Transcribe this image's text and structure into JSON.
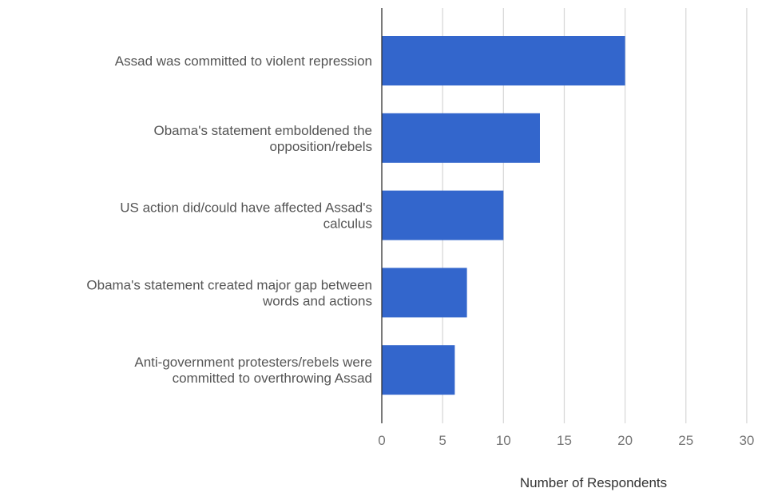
{
  "chart_data": {
    "type": "bar",
    "orientation": "horizontal",
    "categories": [
      [
        "Assad was committed to violent repression"
      ],
      [
        "Obama's statement emboldened the",
        "opposition/rebels"
      ],
      [
        "US action did/could have affected Assad's",
        "calculus"
      ],
      [
        "Obama's statement created major gap between",
        "words and actions"
      ],
      [
        "Anti-government protesters/rebels were",
        "committed to overthrowing Assad"
      ]
    ],
    "values": [
      20,
      13,
      10,
      7,
      6
    ],
    "xlabel": "Number of Respondents",
    "ylabel": "",
    "xlim": [
      0,
      30
    ],
    "xticks": [
      0,
      5,
      10,
      15,
      20,
      25,
      30
    ],
    "grid": true,
    "colors": {
      "bar": "#3366cc",
      "grid": "#d9d9d9",
      "axis": "#333333"
    }
  }
}
